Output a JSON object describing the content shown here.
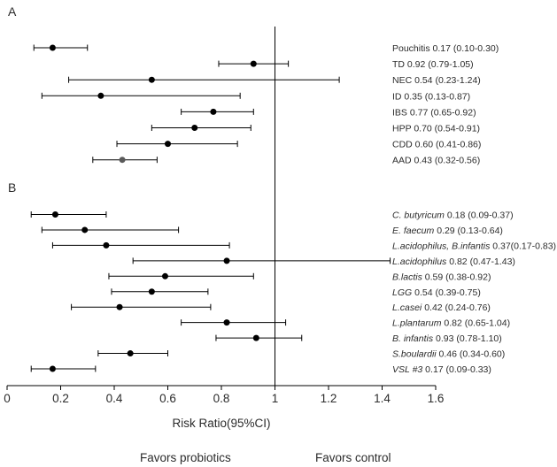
{
  "chart_data": {
    "type": "forest",
    "xlabel": "Risk Ratio(95%CI)",
    "xlim": [
      0,
      1.6
    ],
    "xticks": [
      "0",
      "0.2",
      "0.4",
      "0.6",
      "0.8",
      "1",
      "1.2",
      "1.4",
      "1.6"
    ],
    "reference_line": 1,
    "favors_left": "Favors probiotics",
    "favors_right": "Favors control",
    "panels": [
      {
        "panel_label": "A",
        "rows": [
          {
            "name": "Pouchitis",
            "italic": false,
            "estimate": 0.17,
            "lower": 0.1,
            "upper": 0.3,
            "ci_text": "0.17 (0.10-0.30)"
          },
          {
            "name": "TD",
            "italic": false,
            "estimate": 0.92,
            "lower": 0.79,
            "upper": 1.05,
            "ci_text": "0.92 (0.79-1.05)"
          },
          {
            "name": "NEC",
            "italic": false,
            "estimate": 0.54,
            "lower": 0.23,
            "upper": 1.24,
            "ci_text": "0.54 (0.23-1.24)"
          },
          {
            "name": "ID",
            "italic": false,
            "estimate": 0.35,
            "lower": 0.13,
            "upper": 0.87,
            "ci_text": "0.35 (0.13-0.87)"
          },
          {
            "name": "IBS",
            "italic": false,
            "estimate": 0.77,
            "lower": 0.65,
            "upper": 0.92,
            "ci_text": "0.77 (0.65-0.92)"
          },
          {
            "name": "HPP",
            "italic": false,
            "estimate": 0.7,
            "lower": 0.54,
            "upper": 0.91,
            "ci_text": "0.70 (0.54-0.91)"
          },
          {
            "name": "CDD",
            "italic": false,
            "estimate": 0.6,
            "lower": 0.41,
            "upper": 0.86,
            "ci_text": "0.60 (0.41-0.86)"
          },
          {
            "name": "AAD",
            "italic": false,
            "estimate": 0.43,
            "lower": 0.32,
            "upper": 0.56,
            "ci_text": "0.43 (0.32-0.56)",
            "marker_color": "#5a5a5a"
          }
        ]
      },
      {
        "panel_label": "B",
        "rows": [
          {
            "name": "C. butyricum",
            "italic": true,
            "estimate": 0.18,
            "lower": 0.09,
            "upper": 0.37,
            "ci_text": "0.18 (0.09-0.37)"
          },
          {
            "name": "E. faecum",
            "italic": true,
            "estimate": 0.29,
            "lower": 0.13,
            "upper": 0.64,
            "ci_text": "0.29 (0.13-0.64)"
          },
          {
            "name": "L.acidophilus, B.infantis",
            "italic": true,
            "estimate": 0.37,
            "lower": 0.17,
            "upper": 0.83,
            "ci_text": "0.37(0.17-0.83)"
          },
          {
            "name": "L.acidophilus",
            "italic": true,
            "estimate": 0.82,
            "lower": 0.47,
            "upper": 1.43,
            "ci_text": "0.82 (0.47-1.43)"
          },
          {
            "name": "B.lactis",
            "italic": true,
            "estimate": 0.59,
            "lower": 0.38,
            "upper": 0.92,
            "ci_text": "0.59 (0.38-0.92)"
          },
          {
            "name": "LGG",
            "italic": true,
            "estimate": 0.54,
            "lower": 0.39,
            "upper": 0.75,
            "ci_text": "0.54 (0.39-0.75)"
          },
          {
            "name": "L.casei",
            "italic": true,
            "estimate": 0.42,
            "lower": 0.24,
            "upper": 0.76,
            "ci_text": "0.42 (0.24-0.76)"
          },
          {
            "name": "L.plantarum",
            "italic": true,
            "estimate": 0.82,
            "lower": 0.65,
            "upper": 1.04,
            "ci_text": "0.82 (0.65-1.04)"
          },
          {
            "name": "B. infantis",
            "italic": true,
            "estimate": 0.93,
            "lower": 0.78,
            "upper": 1.1,
            "ci_text": "0.93 (0.78-1.10)"
          },
          {
            "name": "S.boulardii",
            "italic": true,
            "estimate": 0.46,
            "lower": 0.34,
            "upper": 0.6,
            "ci_text": "0.46 (0.34-0.60)"
          },
          {
            "name": "VSL #3",
            "italic": true,
            "estimate": 0.17,
            "lower": 0.09,
            "upper": 0.33,
            "ci_text": "0.17 (0.09-0.33)"
          }
        ]
      }
    ]
  }
}
